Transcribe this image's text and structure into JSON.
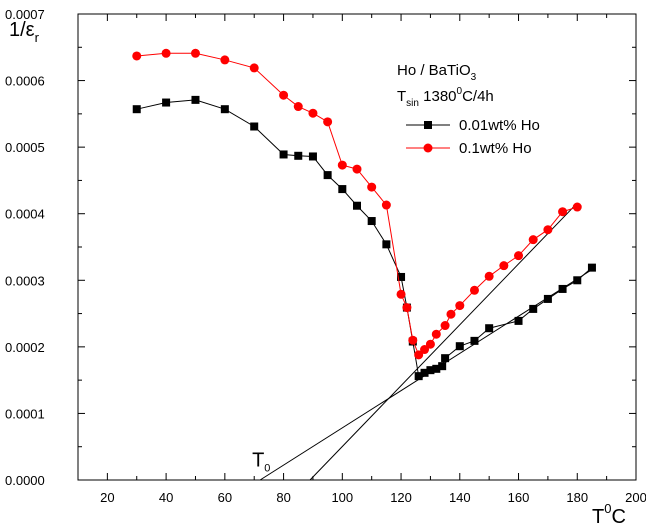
{
  "chart_data": {
    "type": "line",
    "ylabel_main": "1/ε",
    "ylabel_sub": "r",
    "xlabel_main": "T",
    "xlabel_sup": "0",
    "xlabel_end": "C",
    "xlim": [
      10,
      200
    ],
    "ylim": [
      0,
      0.0007
    ],
    "x_ticks": [
      20,
      40,
      60,
      80,
      100,
      120,
      140,
      160,
      180,
      200
    ],
    "y_ticks": [
      "0.0000",
      "0.0001",
      "0.0002",
      "0.0003",
      "0.0004",
      "0.0005",
      "0.0006",
      "0.0007"
    ],
    "legend": {
      "line1_main": "Ho / BaTiO",
      "line1_sub": "3",
      "line2_main": "T",
      "line2_sub": "sin",
      "line2_a": " 1380",
      "line2_sup": "0",
      "line2_b": "C/4h"
    },
    "annotation": {
      "main": "T",
      "sub": "0",
      "x": 72,
      "y": 1.7e-05
    },
    "series": [
      {
        "name": "0.01wt% Ho",
        "color": "#000000",
        "marker": "square",
        "points": [
          [
            30,
            0.000557
          ],
          [
            40,
            0.000567
          ],
          [
            50,
            0.000571
          ],
          [
            60,
            0.000557
          ],
          [
            70,
            0.000531
          ],
          [
            80,
            0.000489
          ],
          [
            85,
            0.000487
          ],
          [
            90,
            0.000486
          ],
          [
            95,
            0.000458
          ],
          [
            100,
            0.000437
          ],
          [
            105,
            0.000412
          ],
          [
            110,
            0.000389
          ],
          [
            115,
            0.000354
          ],
          [
            120,
            0.000305
          ],
          [
            122,
            0.000259
          ],
          [
            124,
            0.000208
          ],
          [
            126,
            0.000156
          ],
          [
            128,
            0.000161
          ],
          [
            130,
            0.000165
          ],
          [
            132,
            0.000167
          ],
          [
            134,
            0.000171
          ],
          [
            135,
            0.000183
          ],
          [
            140,
            0.000201
          ],
          [
            145,
            0.000209
          ],
          [
            150,
            0.000228
          ],
          [
            160,
            0.000239
          ],
          [
            165,
            0.000257
          ],
          [
            170,
            0.000272
          ],
          [
            175,
            0.000287
          ],
          [
            180,
            0.0003
          ],
          [
            185,
            0.000319
          ]
        ]
      },
      {
        "name": "0.1wt% Ho",
        "color": "#ff0000",
        "marker": "circle",
        "points": [
          [
            30,
            0.000637
          ],
          [
            40,
            0.000641
          ],
          [
            50,
            0.000641
          ],
          [
            60,
            0.000631
          ],
          [
            70,
            0.000619
          ],
          [
            80,
            0.000578
          ],
          [
            85,
            0.000561
          ],
          [
            90,
            0.000551
          ],
          [
            95,
            0.000538
          ],
          [
            100,
            0.000473
          ],
          [
            105,
            0.000467
          ],
          [
            110,
            0.00044
          ],
          [
            115,
            0.000413
          ],
          [
            120,
            0.000279
          ],
          [
            122,
            0.000259
          ],
          [
            124,
            0.00021
          ],
          [
            126,
            0.000188
          ],
          [
            128,
            0.000196
          ],
          [
            130,
            0.000204
          ],
          [
            132,
            0.000219
          ],
          [
            135,
            0.000232
          ],
          [
            137,
            0.000249
          ],
          [
            140,
            0.000262
          ],
          [
            145,
            0.000285
          ],
          [
            150,
            0.000306
          ],
          [
            155,
            0.000322
          ],
          [
            160,
            0.000337
          ],
          [
            165,
            0.000361
          ],
          [
            170,
            0.000376
          ],
          [
            175,
            0.000403
          ],
          [
            180,
            0.00041
          ]
        ]
      }
    ],
    "fit_lines": [
      {
        "x1": 89,
        "y1": 0,
        "x2": 180,
        "y2": 0.000416
      },
      {
        "x1": 72,
        "y1": 0,
        "x2": 185,
        "y2": 0.000316
      }
    ]
  }
}
